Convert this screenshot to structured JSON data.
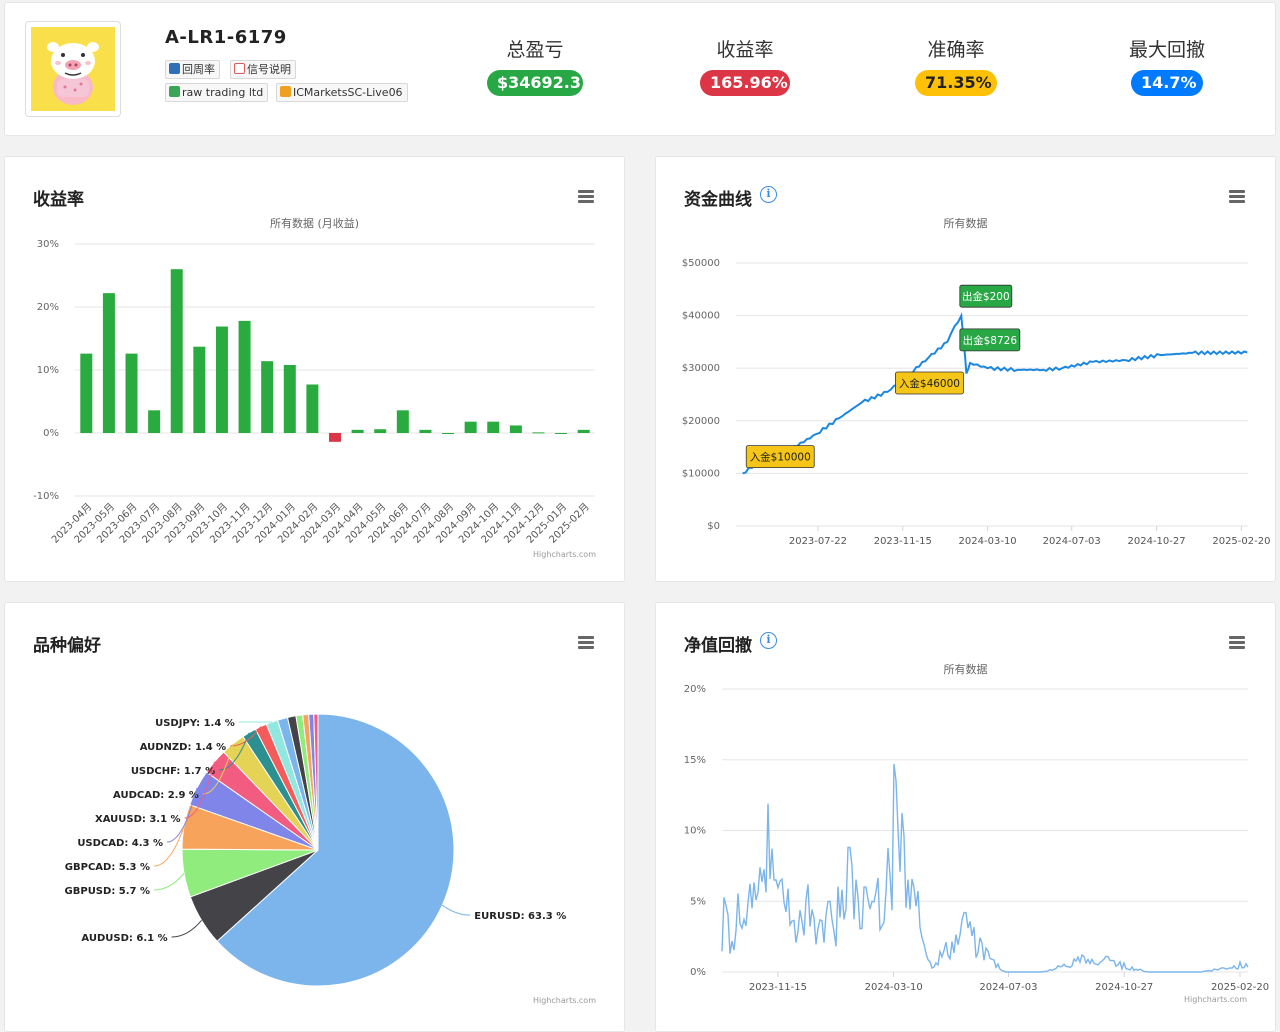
{
  "header": {
    "account_name": "A-LR1-6179",
    "tags": [
      {
        "label": "回周率",
        "icon": "user-card-icon"
      },
      {
        "label": "信号说明",
        "icon": "message-icon"
      },
      {
        "label": "raw trading ltd",
        "icon": "broker-icon"
      },
      {
        "label": "ICMarketsSC-Live06",
        "icon": "server-icon"
      }
    ],
    "stats": [
      {
        "label": "总盈亏",
        "value": "$34692.3",
        "color": "#28a745"
      },
      {
        "label": "收益率",
        "value": "165.96%",
        "color": "#dc3545"
      },
      {
        "label": "准确率",
        "value": "71.35%",
        "color": "#ffc107"
      },
      {
        "label": "最大回撤",
        "value": "14.7%",
        "color": "#007bff"
      }
    ]
  },
  "panels": {
    "returns": {
      "title": "收益率",
      "credit": "Highcharts.com"
    },
    "equity": {
      "title": "资金曲线",
      "credit": ""
    },
    "symbols": {
      "title": "品种偏好",
      "credit": "Highcharts.com"
    },
    "drawdown": {
      "title": "净值回撤",
      "credit": "Highcharts.com"
    }
  },
  "chart_data": [
    {
      "type": "bar",
      "title": "",
      "subtitle": "所有数据 (月收益)",
      "categories": [
        "2023-04月",
        "2023-05月",
        "2023-06月",
        "2023-07月",
        "2023-08月",
        "2023-09月",
        "2023-10月",
        "2023-11月",
        "2023-12月",
        "2024-01月",
        "2024-02月",
        "2024-03月",
        "2024-04月",
        "2024-05月",
        "2024-06月",
        "2024-07月",
        "2024-08月",
        "2024-09月",
        "2024-10月",
        "2024-11月",
        "2024-12月",
        "2025-01月",
        "2025-02月"
      ],
      "values": [
        12.6,
        22.2,
        12.6,
        3.6,
        26.0,
        13.7,
        16.9,
        17.8,
        11.4,
        10.8,
        7.7,
        -1.4,
        0.5,
        0.6,
        3.6,
        0.5,
        0.0,
        1.8,
        1.8,
        1.2,
        0.1,
        0.0,
        0.5
      ],
      "yticks": [
        "30%",
        "20%",
        "10%",
        "0%",
        "-10%"
      ],
      "ylim": [
        -10,
        30
      ],
      "positive_color": "#2aab3f",
      "negative_color": "#dc3545"
    },
    {
      "type": "line",
      "title": "",
      "subtitle": "所有数据",
      "xticks": [
        "2023-07-22",
        "2023-11-15",
        "2024-03-10",
        "2024-07-03",
        "2024-10-27",
        "2025-02-20"
      ],
      "yticks": [
        "$50000",
        "$40000",
        "$30000",
        "$20000",
        "$10000",
        "$0"
      ],
      "ylim": [
        0,
        50000
      ],
      "series": [
        {
          "x": [
            "2023-04-10",
            "2023-05-10",
            "2023-06-15",
            "2023-07-20",
            "2023-08-20",
            "2023-09-20",
            "2023-10-25",
            "2023-11-25",
            "2023-12-20",
            "2024-01-15",
            "2024-01-25",
            "2024-02-03",
            "2024-02-07",
            "2024-02-10",
            "2024-02-15",
            "2024-03-10",
            "2024-04-20",
            "2024-05-25",
            "2024-06-20",
            "2024-08-01",
            "2024-09-15",
            "2024-11-01",
            "2024-12-15",
            "2025-02-28"
          ],
          "values": [
            10000,
            13000,
            14600,
            17500,
            20500,
            23500,
            25500,
            29000,
            32000,
            35000,
            38000,
            40000,
            34000,
            29000,
            31000,
            30000,
            29700,
            29700,
            30000,
            31200,
            31500,
            32500,
            32900,
            33000
          ],
          "color": "#1c87e0"
        }
      ],
      "annotations": [
        {
          "text": "入金$10000",
          "x": "2023-04-15",
          "y": 13000,
          "color": "#f5c518"
        },
        {
          "text": "入金$46000",
          "x": "2023-11-05",
          "y": 27000,
          "color": "#f5c518"
        },
        {
          "text": "出金$200",
          "x": "2024-02-01",
          "y": 43500,
          "color": "#28a745"
        },
        {
          "text": "出金$8726",
          "x": "2024-02-01",
          "y": 35200,
          "color": "#28a745"
        }
      ]
    },
    {
      "type": "pie",
      "title": "",
      "slices": [
        {
          "label": "EURUSD: 63.3 %",
          "value": 63.3,
          "color": "#7cb5ec"
        },
        {
          "label": "AUDUSD: 6.1 %",
          "value": 6.1,
          "color": "#434348"
        },
        {
          "label": "GBPUSD: 5.7 %",
          "value": 5.7,
          "color": "#90ed7d"
        },
        {
          "label": "GBPCAD: 5.3 %",
          "value": 5.3,
          "color": "#f7a35c"
        },
        {
          "label": "USDCAD: 4.3 %",
          "value": 4.3,
          "color": "#8085e9"
        },
        {
          "label": "XAUUSD: 3.1 %",
          "value": 3.1,
          "color": "#f15c80"
        },
        {
          "label": "AUDCAD: 2.9 %",
          "value": 2.9,
          "color": "#e4d354"
        },
        {
          "label": "USDCHF: 1.7 %",
          "value": 1.7,
          "color": "#2b908f"
        },
        {
          "label": "AUDNZD: 1.4 %",
          "value": 1.4,
          "color": "#f45b5b"
        },
        {
          "label": "USDJPY: 1.4 %",
          "value": 1.4,
          "color": "#91e8e1"
        },
        {
          "label": "",
          "value": 1.2,
          "color": "#7cb5ec"
        },
        {
          "label": "",
          "value": 1.0,
          "color": "#434348"
        },
        {
          "label": "",
          "value": 0.8,
          "color": "#90ed7d"
        },
        {
          "label": "",
          "value": 0.7,
          "color": "#f7a35c"
        },
        {
          "label": "",
          "value": 0.6,
          "color": "#8085e9"
        },
        {
          "label": "",
          "value": 0.5,
          "color": "#f15c80"
        }
      ]
    },
    {
      "type": "line",
      "title": "",
      "subtitle": "所有数据",
      "xticks": [
        "2023-11-15",
        "2024-03-10",
        "2024-07-03",
        "2024-10-27",
        "2025-02-20"
      ],
      "yticks": [
        "20%",
        "15%",
        "10%",
        "5%",
        "0%"
      ],
      "ylim": [
        0,
        20
      ],
      "color": "#7cb5ec",
      "seed_peaks": [
        {
          "x": "2023-10-20",
          "y": 4.5
        },
        {
          "x": "2023-10-28",
          "y": 7.4
        },
        {
          "x": "2023-11-05",
          "y": 11.9
        },
        {
          "x": "2023-11-12",
          "y": 6.5
        },
        {
          "x": "2023-12-15",
          "y": 6.2
        },
        {
          "x": "2024-01-05",
          "y": 5.0
        },
        {
          "x": "2024-01-25",
          "y": 8.8
        },
        {
          "x": "2024-02-10",
          "y": 6.0
        },
        {
          "x": "2024-03-10",
          "y": 14.7
        },
        {
          "x": "2024-05-20",
          "y": 4.2
        },
        {
          "x": "2024-09-15",
          "y": 1.2
        },
        {
          "x": "2024-10-10",
          "y": 1.1
        },
        {
          "x": "2025-02-20",
          "y": 0.7
        }
      ]
    }
  ]
}
